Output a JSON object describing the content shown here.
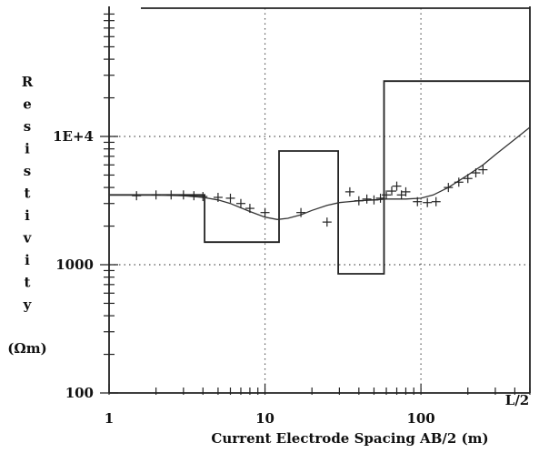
{
  "chart_data": {
    "type": "line",
    "xscale": "log",
    "yscale": "log",
    "xlim": [
      1,
      500
    ],
    "ylim": [
      100,
      100000
    ],
    "x_ticks": [
      {
        "value": 1,
        "label": "1"
      },
      {
        "value": 10,
        "label": "10"
      },
      {
        "value": 100,
        "label": "100"
      },
      {
        "value": 500,
        "label": "L/2"
      }
    ],
    "y_ticks": [
      {
        "value": 100,
        "label": "100"
      },
      {
        "value": 1000,
        "label": "1000"
      },
      {
        "value": 10000,
        "label": "1E+4"
      }
    ],
    "xlabel": "Current Electrode Spacing  AB/2 (m)",
    "ylabel_letters": [
      "R",
      "e",
      "s",
      "i",
      "s",
      "t",
      "i",
      "v",
      "i",
      "t",
      "y"
    ],
    "ylabel_unit": "(Ωm)",
    "grid": "dotted at decades",
    "series": [
      {
        "kind": "layered-model",
        "x": [
          1,
          4.1,
          4.1,
          12.3,
          12.3,
          29.5,
          29.5,
          58,
          58,
          500
        ],
        "y": [
          3500,
          3500,
          1500,
          1500,
          7700,
          7700,
          850,
          850,
          27000,
          27000
        ]
      },
      {
        "kind": "fitted-curve",
        "x": [
          1,
          2,
          3,
          4,
          5,
          6,
          8,
          10,
          12,
          14,
          17,
          20,
          25,
          30,
          40,
          50,
          60,
          70,
          80,
          100,
          120,
          150,
          200,
          250,
          300,
          400,
          500
        ],
        "y": [
          3500,
          3500,
          3450,
          3350,
          3200,
          3000,
          2600,
          2350,
          2250,
          2300,
          2450,
          2650,
          2900,
          3050,
          3150,
          3200,
          3250,
          3250,
          3250,
          3300,
          3500,
          4000,
          5000,
          6000,
          7200,
          9500,
          11800
        ]
      },
      {
        "kind": "measured-points",
        "x": [
          1.5,
          2.0,
          2.5,
          3.0,
          3.5,
          4.0,
          5.0,
          6.0,
          7.0,
          8.0,
          10.0,
          17.0,
          25.0,
          35.0,
          40.0,
          45.0,
          50.0,
          55.0,
          60.0,
          65.0,
          70.0,
          75.0,
          80.0,
          95.0,
          110.0,
          125.0,
          150.0,
          175.0,
          200.0,
          225.0,
          250.0
        ],
        "y": [
          3450,
          3500,
          3500,
          3500,
          3450,
          3400,
          3350,
          3300,
          3000,
          2750,
          2550,
          2550,
          2150,
          3700,
          3150,
          3250,
          3200,
          3300,
          3500,
          3750,
          4100,
          3500,
          3700,
          3100,
          3050,
          3100,
          4000,
          4400,
          4700,
          5200,
          5500
        ]
      }
    ]
  }
}
